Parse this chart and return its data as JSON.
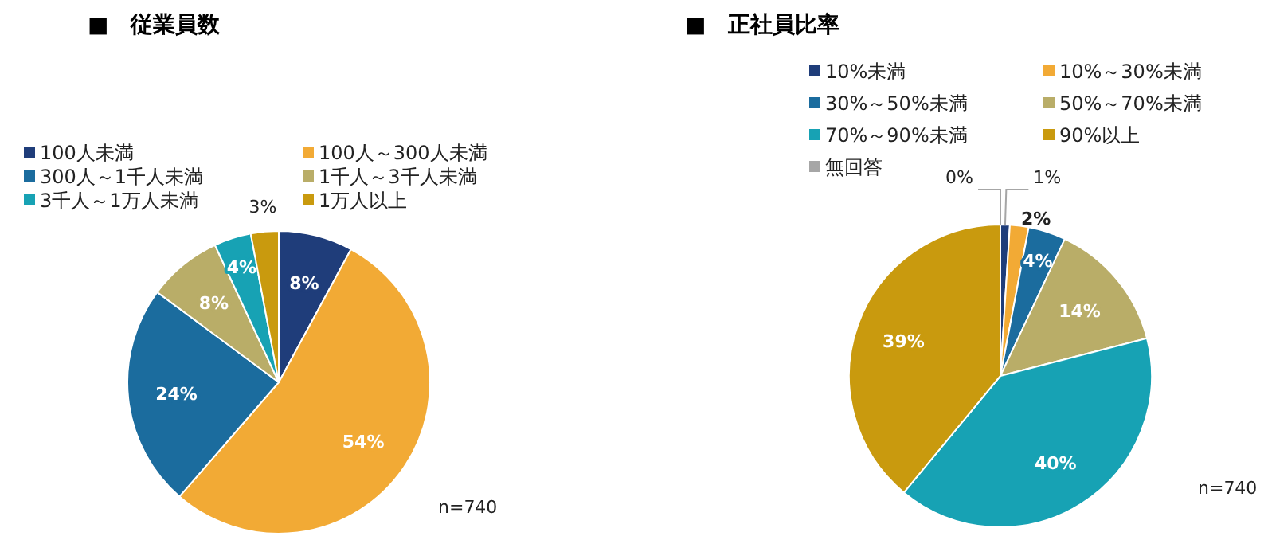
{
  "chart_data": [
    {
      "type": "pie",
      "title": "■　従業員数",
      "categories": [
        "100人未満",
        "100人～300人未満",
        "300人～1千人未満",
        "1千人～3千人未満",
        "3千人～1万人未満",
        "1万人以上"
      ],
      "values": [
        8,
        54,
        24,
        8,
        4,
        3
      ],
      "colors": [
        "#1f3d7a",
        "#f2aa35",
        "#1b6c9e",
        "#b9ad68",
        "#17a2b4",
        "#c99a0e"
      ],
      "value_labels": [
        "8%",
        "54%",
        "24%",
        "8%",
        "4%",
        "3%"
      ],
      "legend": "top",
      "annotations": [
        "n=740"
      ]
    },
    {
      "type": "pie",
      "title": "■　正社員比率",
      "categories": [
        "10%未満",
        "10%～30%未満",
        "30%～50%未満",
        "50%～70%未満",
        "70%～90%未満",
        "90%以上",
        "無回答"
      ],
      "values": [
        1,
        2,
        4,
        14,
        40,
        39,
        0
      ],
      "colors": [
        "#1f3d7a",
        "#f2aa35",
        "#1b6c9e",
        "#b9ad68",
        "#17a2b4",
        "#c99a0e",
        "#a6a6a6"
      ],
      "value_labels": [
        "1%",
        "2%",
        "4%",
        "14%",
        "40%",
        "39%",
        "0%"
      ],
      "legend": "top",
      "annotations": [
        "n=740"
      ]
    }
  ]
}
